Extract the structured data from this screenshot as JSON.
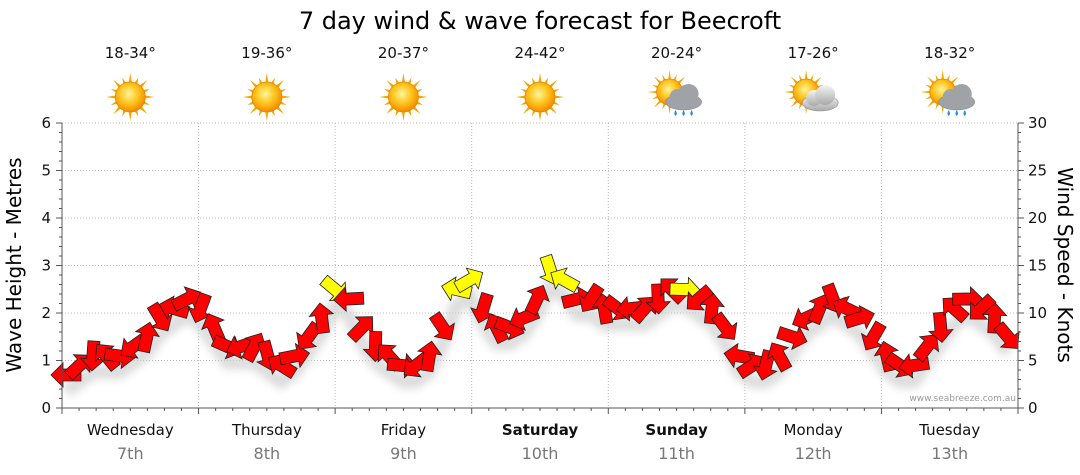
{
  "chart_data": {
    "type": "line",
    "title": "7 day wind & wave forecast for Beecroft",
    "ylabel_left": "Wave Height - Metres",
    "ylabel_right": "Wind Speed - Knots",
    "ylim_left": [
      0,
      6
    ],
    "ylim_right": [
      0,
      30
    ],
    "yticks_left": [
      "0",
      "1",
      "2",
      "3",
      "4",
      "5",
      "6"
    ],
    "yticks_right": [
      "0",
      "5",
      "10",
      "15",
      "20",
      "25",
      "30"
    ],
    "days": [
      {
        "name": "Wednesday",
        "date": "7th",
        "bold": false,
        "temp": "18-34°",
        "weather": "sunny"
      },
      {
        "name": "Thursday",
        "date": "8th",
        "bold": false,
        "temp": "19-36°",
        "weather": "sunny"
      },
      {
        "name": "Friday",
        "date": "9th",
        "bold": false,
        "temp": "20-37°",
        "weather": "sunny"
      },
      {
        "name": "Saturday",
        "date": "10th",
        "bold": true,
        "temp": "24-42°",
        "weather": "sunny"
      },
      {
        "name": "Sunday",
        "date": "11th",
        "bold": true,
        "temp": "20-24°",
        "weather": "sun-showers"
      },
      {
        "name": "Monday",
        "date": "12th",
        "bold": false,
        "temp": "17-26°",
        "weather": "partly-cloudy"
      },
      {
        "name": "Tuesday",
        "date": "13th",
        "bold": false,
        "temp": "18-32°",
        "weather": "sun-showers"
      }
    ],
    "series": [
      {
        "axis": "right",
        "wind_speed_knots": [
          2,
          3,
          4,
          4,
          4,
          5,
          6,
          8,
          9,
          10,
          9,
          7,
          5,
          5,
          5,
          4,
          3,
          4,
          6,
          8,
          11,
          10,
          7,
          5,
          4,
          3,
          3,
          4,
          7,
          11,
          12,
          9,
          7,
          7,
          8,
          10,
          13,
          12,
          10,
          10,
          9,
          9,
          9,
          9,
          10,
          11,
          11,
          10,
          9,
          7,
          4,
          3,
          3,
          4,
          6,
          8,
          9,
          10,
          9,
          8,
          6,
          4,
          3,
          3,
          5,
          7,
          9,
          10,
          9,
          8,
          6
        ],
        "arrow_colors": [
          "#ff0000",
          "#ff0000",
          "#ff0000",
          "#ff0000",
          "#ff0000",
          "#ff0000",
          "#ff0000",
          "#ff0000",
          "#ff0000",
          "#ff0000",
          "#ff0000",
          "#ff0000",
          "#ff0000",
          "#ff0000",
          "#ff0000",
          "#ff0000",
          "#ff0000",
          "#ff0000",
          "#ff0000",
          "#ff0000",
          "#ffff00",
          "#ff0000",
          "#ff0000",
          "#ff0000",
          "#ff0000",
          "#ff0000",
          "#ff0000",
          "#ff0000",
          "#ff0000",
          "#ffff00",
          "#ffff00",
          "#ff0000",
          "#ff0000",
          "#ff0000",
          "#ff0000",
          "#ff0000",
          "#ffff00",
          "#ffff00",
          "#ff0000",
          "#ff0000",
          "#ff0000",
          "#ff0000",
          "#ff0000",
          "#ff0000",
          "#ff0000",
          "#ff0000",
          "#ffff00",
          "#ff0000",
          "#ff0000",
          "#ff0000",
          "#ff0000",
          "#ff0000",
          "#ff0000",
          "#ff0000",
          "#ff0000",
          "#ff0000",
          "#ff0000",
          "#ff0000",
          "#ff0000",
          "#ff0000",
          "#ff0000",
          "#ff0000",
          "#ff0000",
          "#ff0000",
          "#ff0000",
          "#ff0000",
          "#ff0000",
          "#ff0000",
          "#ff0000",
          "#ff0000",
          "#ff0000"
        ]
      }
    ],
    "grid": true,
    "watermark": "www.seabreeze.com.au"
  }
}
